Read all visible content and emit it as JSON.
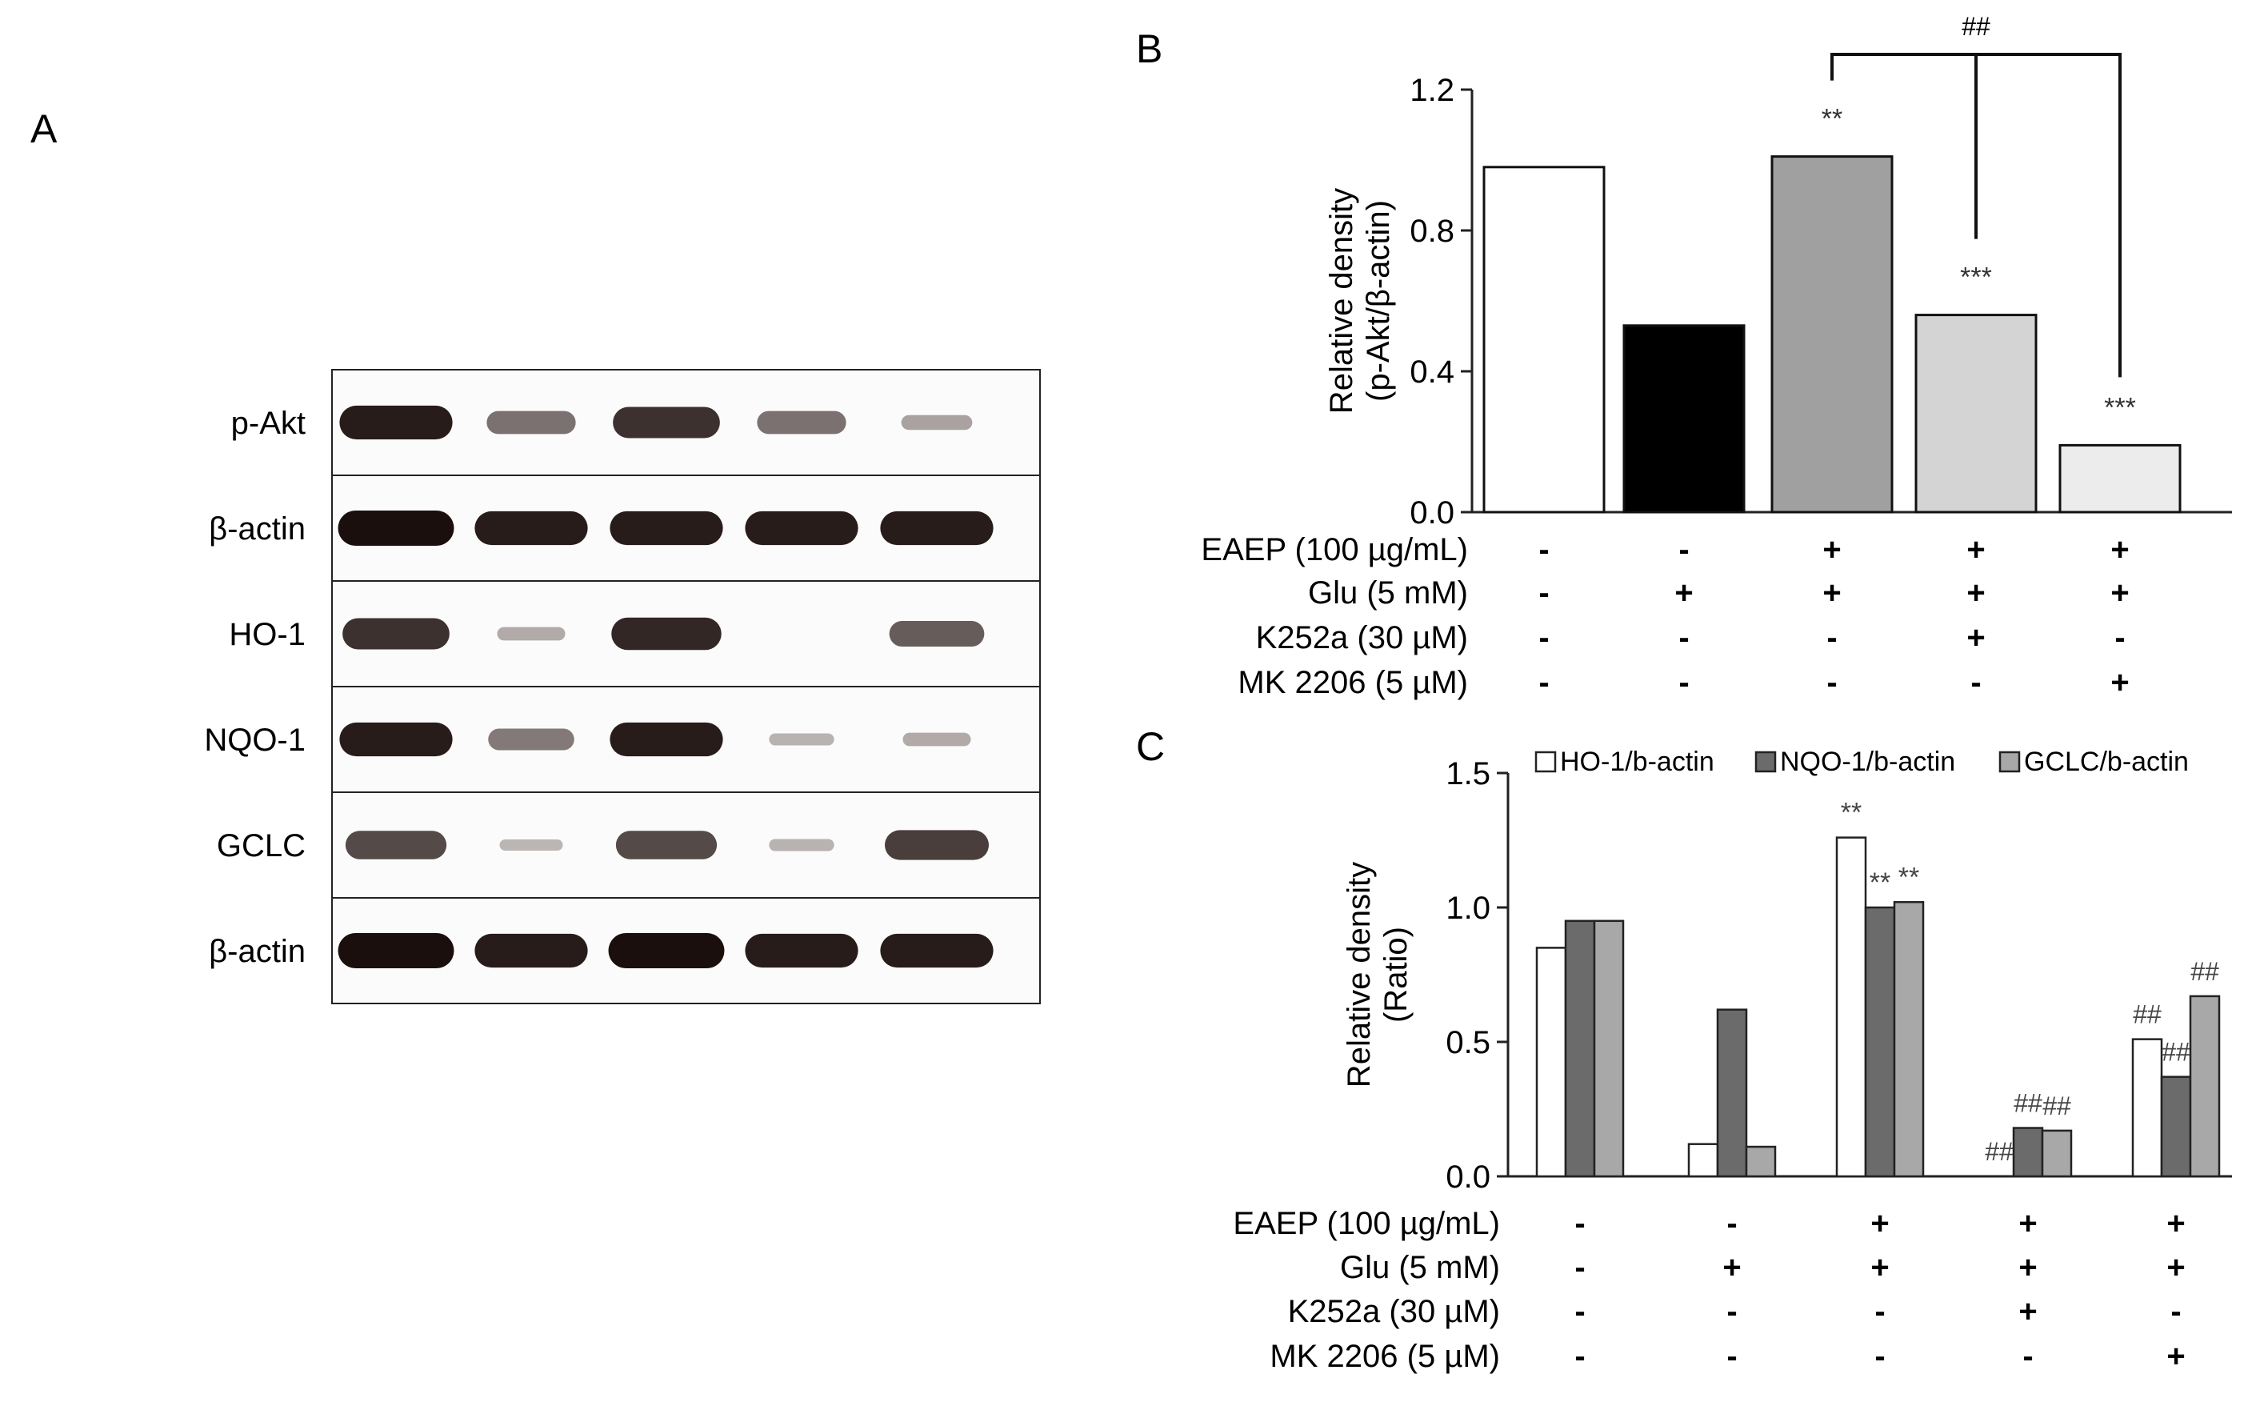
{
  "panels": {
    "a": "A",
    "b": "B",
    "c": "C"
  },
  "blot": {
    "rows": [
      {
        "label": "p-Akt",
        "intensity": [
          0.95,
          0.55,
          0.85,
          0.55,
          0.25
        ]
      },
      {
        "label": "β-actin",
        "intensity": [
          1.0,
          0.95,
          0.95,
          0.95,
          0.95
        ]
      },
      {
        "label": "HO-1",
        "intensity": [
          0.85,
          0.2,
          0.9,
          0.0,
          0.65
        ]
      },
      {
        "label": "NQO-1",
        "intensity": [
          0.95,
          0.5,
          0.95,
          0.15,
          0.2
        ]
      },
      {
        "label": "GCLC",
        "intensity": [
          0.75,
          0.12,
          0.75,
          0.15,
          0.8
        ]
      },
      {
        "label": "β-actin",
        "intensity": [
          1.0,
          0.95,
          1.0,
          0.95,
          0.95
        ]
      }
    ]
  },
  "treatments": {
    "labels": [
      "EAEP (100 µg/mL)",
      "Glu (5 mM)",
      "K252a (30 µM)",
      "MK 2206 (5 µM)"
    ],
    "signs": [
      [
        "-",
        "-",
        "+",
        "+",
        "+"
      ],
      [
        "-",
        "+",
        "+",
        "+",
        "+"
      ],
      [
        "-",
        "-",
        "-",
        "+",
        "-"
      ],
      [
        "-",
        "-",
        "-",
        "-",
        "+"
      ]
    ]
  },
  "chart_data": [
    {
      "panel": "B",
      "type": "bar",
      "ylabel": "Relative density (p-Akt/β-actin)",
      "ylabel_lines": [
        "Relative density",
        "(p-Akt/β-actin)"
      ],
      "ylim": [
        0,
        1.2
      ],
      "yticks": [
        "0.0",
        "0.4",
        "0.8",
        "1.2"
      ],
      "ytick_values": [
        0,
        0.4,
        0.8,
        1.2
      ],
      "values": [
        0.98,
        0.53,
        1.01,
        0.56,
        0.19
      ],
      "bar_colors": [
        "#ffffff",
        "#000000",
        "#a0a0a0",
        "#d4d4d4",
        "#ececec"
      ],
      "significance": [
        "",
        "",
        "**",
        "***",
        "***"
      ],
      "bracket_label": "##"
    },
    {
      "panel": "C",
      "type": "bar",
      "ylabel": "Relative density (Ratio)",
      "ylabel_lines": [
        "Relative density",
        "(Ratio)"
      ],
      "ylim": [
        0,
        1.5
      ],
      "yticks": [
        "0.0",
        "0.5",
        "1.0",
        "1.5"
      ],
      "ytick_values": [
        0,
        0.5,
        1.0,
        1.5
      ],
      "legend_position": "top",
      "series": [
        {
          "name": "HO-1/b-actin",
          "color": "#ffffff",
          "values": [
            0.85,
            0.12,
            1.26,
            0.0,
            0.51
          ],
          "marks": [
            "",
            "",
            "**",
            "##",
            "##"
          ]
        },
        {
          "name": "NQO-1/b-actin",
          "color": "#6b6b6b",
          "values": [
            0.95,
            0.62,
            1.0,
            0.18,
            0.37
          ],
          "marks": [
            "",
            "",
            "**",
            "##",
            "##"
          ]
        },
        {
          "name": "GCLC/b-actin",
          "color": "#a8a8a8",
          "values": [
            0.95,
            0.11,
            1.02,
            0.17,
            0.67
          ],
          "marks": [
            "",
            "",
            "**",
            "##",
            "##"
          ]
        }
      ]
    }
  ]
}
